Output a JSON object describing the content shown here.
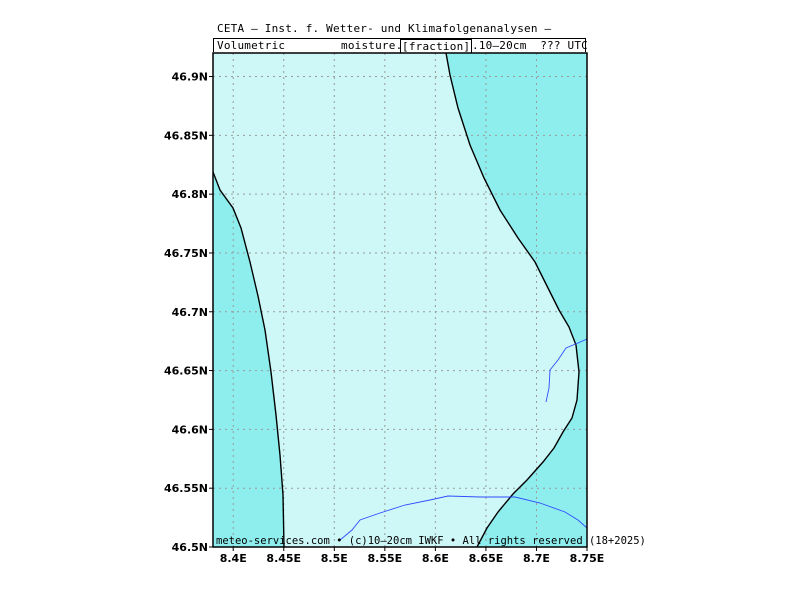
{
  "header": {
    "line1": "CETA – Inst. f. Wetter- und Klimafolgenanalysen –",
    "line2_left": "Volumetric",
    "line2_mid": "moisture.",
    "line2_box": "[fraction]",
    "line2_right": ".10–20cm  ??? UTC"
  },
  "map": {
    "lon_ticks": [
      "8.4E",
      "8.45E",
      "8.5E",
      "8.55E",
      "8.6E",
      "8.65E",
      "8.7E",
      "8.75E"
    ],
    "lat_ticks": [
      "46.9N",
      "46.85N",
      "46.8N",
      "46.75N",
      "46.7N",
      "46.65N",
      "46.6N",
      "46.55N",
      "46.5N"
    ],
    "lon_range": [
      8.38,
      8.75
    ],
    "lat_range": [
      46.5,
      46.92
    ],
    "colors": {
      "inner_region": "#cef8f8",
      "outer_region": "#8eeeee",
      "border_line": "#000000",
      "river": "#2f4cff",
      "grid": "#999999"
    },
    "footer": "meteo-services.com • (c)10–20cm IWKF • All rights reserved (18+2025)"
  }
}
